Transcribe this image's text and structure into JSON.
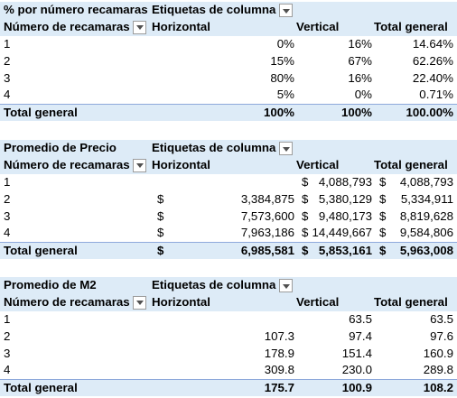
{
  "pivot1": {
    "title": "% por número recamaras",
    "col_label": "Etiquetas de columna",
    "row_label": "Número de recamaras",
    "cols": [
      "Horizontal",
      "Vertical",
      "Total general"
    ],
    "rows": [
      {
        "k": "1",
        "h": "0%",
        "v": "16%",
        "t": "14.64%"
      },
      {
        "k": "2",
        "h": "15%",
        "v": "67%",
        "t": "62.26%"
      },
      {
        "k": "3",
        "h": "80%",
        "v": "16%",
        "t": "22.40%"
      },
      {
        "k": "4",
        "h": "5%",
        "v": "0%",
        "t": "0.71%"
      }
    ],
    "total": {
      "k": "Total general",
      "h": "100%",
      "v": "100%",
      "t": "100.00%"
    }
  },
  "pivot2": {
    "title": "Promedio de Precio",
    "col_label": "Etiquetas de columna",
    "row_label": "Número de recamaras",
    "cols": [
      "Horizontal",
      "Vertical",
      "Total general"
    ],
    "currency": "$",
    "rows": [
      {
        "k": "1",
        "h": "",
        "v": "4,088,793",
        "t": "4,088,793"
      },
      {
        "k": "2",
        "h": "3,384,875",
        "v": "5,380,129",
        "t": "5,334,911"
      },
      {
        "k": "3",
        "h": "7,573,600",
        "v": "9,480,173",
        "t": "8,819,628"
      },
      {
        "k": "4",
        "h": "7,963,186",
        "v": "14,449,667",
        "t": "9,584,806"
      }
    ],
    "total": {
      "k": "Total general",
      "h": "6,985,581",
      "v": "5,853,161",
      "t": "5,963,008"
    }
  },
  "pivot3": {
    "title": "Promedio de M2",
    "col_label": "Etiquetas de columna",
    "row_label": "Número de recamaras",
    "cols": [
      "Horizontal",
      "Vertical",
      "Total general"
    ],
    "rows": [
      {
        "k": "1",
        "h": "",
        "v": "63.5",
        "t": "63.5"
      },
      {
        "k": "2",
        "h": "107.3",
        "v": "97.4",
        "t": "97.6"
      },
      {
        "k": "3",
        "h": "178.9",
        "v": "151.4",
        "t": "160.9"
      },
      {
        "k": "4",
        "h": "309.8",
        "v": "230.0",
        "t": "289.8"
      }
    ],
    "total": {
      "k": "Total general",
      "h": "175.7",
      "v": "100.9",
      "t": "108.2"
    }
  }
}
